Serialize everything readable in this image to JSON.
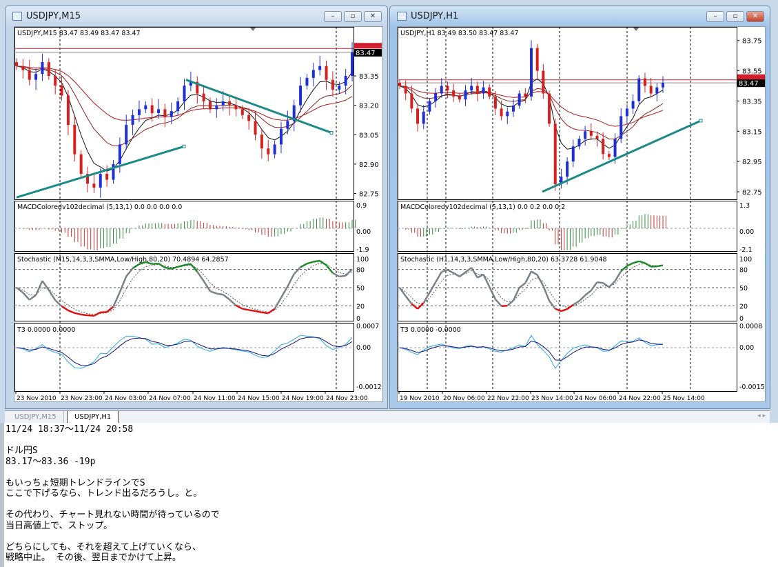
{
  "colors": {
    "bull": "#1e2fd8",
    "bear": "#d42020",
    "macd_up": "#2e8b3a",
    "macd_dn": "#c03030",
    "stoch_main": "#7a8088",
    "stoch_hi": "#1f8a2a",
    "stoch_lo": "#e01010",
    "t3_a": "#2aa8e0",
    "t3_b": "#10107a",
    "trend": "#1a8a88",
    "price_label": "#000000",
    "ask_line": "#d02030"
  },
  "windows": [
    {
      "title": "USDJPY,M15",
      "legend": "USDJPY,M15  83.47 83.49 83.47 83.47",
      "current_price": "83.47",
      "ask_price": "83.49",
      "price_ticks": [
        "83.35",
        "83.20",
        "83.05",
        "82.90",
        "82.75"
      ],
      "macd_label": "MACDColoredv102decimal (5,13,1) 0.0 0.0 0.0 0.0",
      "macd_ticks": [
        "0.9",
        "0.00",
        "-1.9"
      ],
      "stoch_label": "Stochastic (M15,14,3,3,SMMA,Low/High,80,20) 70.4894 64.2857",
      "stoch_ticks": [
        "100",
        "80",
        "50",
        "20",
        "0"
      ],
      "t3_label": "T3 0.0000 0.0000",
      "t3_ticks": [
        "0.0007",
        "0.00",
        "-0.0012"
      ],
      "time_labels": [
        "23 Nov 2010",
        "23 Nov 23:00",
        "24 Nov 03:00",
        "24 Nov 07:00",
        "24 Nov 11:00",
        "24 Nov 15:00",
        "24 Nov 19:00",
        "24 Nov 23:00"
      ],
      "closes": [
        83.4,
        83.38,
        83.33,
        83.36,
        83.42,
        83.35,
        83.3,
        83.25,
        83.1,
        82.95,
        82.85,
        82.8,
        82.78,
        82.85,
        82.82,
        82.9,
        83.0,
        83.1,
        83.15,
        83.18,
        83.2,
        83.16,
        83.18,
        83.14,
        83.17,
        83.22,
        83.3,
        83.32,
        83.26,
        83.22,
        83.18,
        83.2,
        83.22,
        83.2,
        83.18,
        83.15,
        83.12,
        83.05,
        82.98,
        82.95,
        83.0,
        83.08,
        83.12,
        83.2,
        83.3,
        83.34,
        83.38,
        83.4,
        83.33,
        83.28,
        83.3,
        83.35,
        83.47
      ]
    },
    {
      "title": "USDJPY,H1",
      "legend": "USDJPY,H1  83.49 83.50 83.47 83.47",
      "current_price": "83.47",
      "ask_price": "83.49",
      "price_ticks": [
        "83.75",
        "83.55",
        "83.35",
        "83.15",
        "82.95",
        "82.75"
      ],
      "macd_label": "MACDColoredv102decimal (5,13,1) 0.0 0.2 0.0 0.2",
      "macd_ticks": [
        "1.3",
        "0.00",
        "-2.1"
      ],
      "stoch_label": "Stochastic (H1,14,3,3,SMMA,Low/High,80,20) 63.3728 61.9048",
      "stoch_ticks": [
        "100",
        "80",
        "50",
        "20",
        "0"
      ],
      "t3_label": "T3 0.0000 -0.0000",
      "t3_ticks": [
        "0.0008",
        "0.00",
        "-0.0015"
      ],
      "time_labels": [
        "19 Nov 2010",
        "20 Nov 06:00",
        "22 Nov 22:00",
        "23 Nov 14:00",
        "24 Nov 06:00",
        "24 Nov 22:00",
        "25 Nov 14:00"
      ],
      "closes": [
        83.45,
        83.4,
        83.3,
        83.2,
        83.28,
        83.35,
        83.4,
        83.45,
        83.42,
        83.38,
        83.36,
        83.42,
        83.45,
        83.4,
        83.44,
        83.38,
        83.3,
        83.25,
        83.28,
        83.32,
        83.4,
        83.38,
        83.7,
        83.55,
        83.4,
        83.2,
        82.8,
        82.85,
        82.95,
        83.05,
        83.1,
        83.15,
        83.12,
        83.1,
        83.0,
        82.98,
        83.1,
        83.25,
        83.3,
        83.35,
        83.5,
        83.45,
        83.4,
        83.44,
        83.47
      ]
    }
  ],
  "tabs": [
    {
      "label": "USDJPY,M15",
      "selected": false
    },
    {
      "label": "USDJPY,H1",
      "selected": true
    }
  ],
  "memo": [
    "11/24 18:37～11/24 20:58",
    "",
    "ドル円S",
    "83.17～83.36 -19p",
    "",
    "もいっちょ短期トレンドラインでS",
    "ここで下げるなら、トレンド出るだろうし。と。",
    "",
    "その代わり、チャート見れない時間が待っているので",
    "当日高値上で、ストップ。",
    "",
    "どちらにしても、それを超えて上げていくなら、",
    "戦略中止。 その後、翌日までかけて上昇。"
  ]
}
